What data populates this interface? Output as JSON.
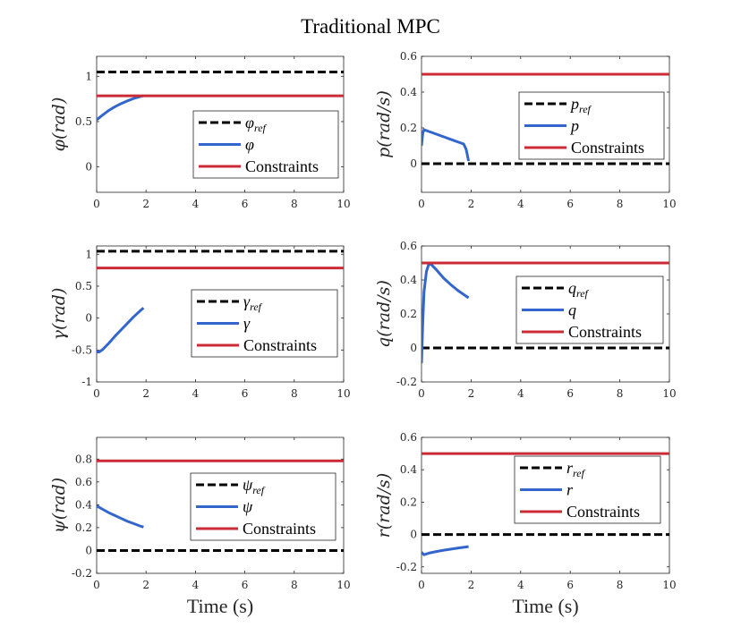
{
  "figure_title": "Traditional MPC",
  "chart_data": [
    {
      "id": "phi",
      "type": "line",
      "ylabel": "φ(rad)",
      "xlabel": "",
      "xlim": [
        0,
        10
      ],
      "ylim": [
        -0.28,
        1.22
      ],
      "xticks": [
        0,
        2,
        4,
        6,
        8,
        10
      ],
      "xtick_labels": [
        "0",
        "2",
        "4",
        "6",
        "8",
        "10"
      ],
      "yticks": [
        0,
        0.5,
        1
      ],
      "ytick_labels": [
        "0",
        "0.5",
        "1"
      ],
      "legend": {
        "position": "center-right",
        "entries": [
          {
            "sym": "φ",
            "sub": "ref",
            "text": ""
          },
          {
            "sym": "φ",
            "sub": "",
            "text": ""
          },
          {
            "sym": "",
            "sub": "",
            "text": "Constraints"
          }
        ]
      },
      "series": [
        {
          "name": "φ_ref",
          "style": "dash",
          "color": "#000000",
          "x": [
            0,
            10
          ],
          "y": [
            1.047,
            1.047
          ]
        },
        {
          "name": "φ",
          "style": "solid",
          "color": "#3366cc",
          "x": [
            0,
            0.25,
            0.5,
            0.75,
            1.0,
            1.25,
            1.5,
            1.75,
            1.9
          ],
          "y": [
            0.52,
            0.575,
            0.625,
            0.665,
            0.7,
            0.73,
            0.755,
            0.775,
            0.785
          ]
        },
        {
          "name": "Constraints",
          "style": "solid",
          "color": "#cc2b36",
          "x": [
            0,
            10
          ],
          "y": [
            0.785,
            0.785
          ]
        }
      ]
    },
    {
      "id": "p",
      "type": "line",
      "ylabel": "p(rad/s)",
      "xlabel": "",
      "xlim": [
        0,
        10
      ],
      "ylim": [
        -0.16,
        0.6
      ],
      "xticks": [
        0,
        2,
        4,
        6,
        8,
        10
      ],
      "xtick_labels": [
        "0",
        "2",
        "4",
        "6",
        "8",
        "10"
      ],
      "yticks": [
        0,
        0.2,
        0.4,
        0.6
      ],
      "ytick_labels": [
        "0",
        "0.2",
        "0.4",
        "0.6"
      ],
      "legend": {
        "position": "center-right",
        "entries": [
          {
            "sym": "p",
            "sub": "ref",
            "text": ""
          },
          {
            "sym": "p",
            "sub": "",
            "text": ""
          },
          {
            "sym": "",
            "sub": "",
            "text": "Constraints"
          }
        ]
      },
      "series": [
        {
          "name": "p_ref",
          "style": "dash",
          "color": "#000000",
          "x": [
            0,
            10
          ],
          "y": [
            0,
            0
          ]
        },
        {
          "name": "p",
          "style": "solid",
          "color": "#3366cc",
          "x": [
            0,
            0.05,
            0.1,
            0.2,
            0.5,
            1.0,
            1.5,
            1.7,
            1.8,
            1.9
          ],
          "y": [
            0.1,
            0.17,
            0.19,
            0.185,
            0.17,
            0.145,
            0.12,
            0.11,
            0.08,
            0.015
          ]
        },
        {
          "name": "Constraints",
          "style": "solid",
          "color": "#cc2b36",
          "x": [
            0,
            10
          ],
          "y": [
            0.5,
            0.5
          ]
        }
      ]
    },
    {
      "id": "gamma",
      "type": "line",
      "ylabel": "γ(rad)",
      "xlabel": "",
      "xlim": [
        0,
        10
      ],
      "ylim": [
        -1,
        1.13
      ],
      "xticks": [
        0,
        2,
        4,
        6,
        8,
        10
      ],
      "xtick_labels": [
        "0",
        "2",
        "4",
        "6",
        "8",
        "10"
      ],
      "yticks": [
        -1,
        -0.5,
        0,
        0.5,
        1
      ],
      "ytick_labels": [
        "-1",
        "-0.5",
        "0",
        "0.5",
        "1"
      ],
      "legend": {
        "position": "center-right",
        "entries": [
          {
            "sym": "γ",
            "sub": "ref",
            "text": ""
          },
          {
            "sym": "γ",
            "sub": "",
            "text": ""
          },
          {
            "sym": "",
            "sub": "",
            "text": "Constraints"
          }
        ]
      },
      "series": [
        {
          "name": "γ_ref",
          "style": "dash",
          "color": "#000000",
          "x": [
            0,
            10
          ],
          "y": [
            1.047,
            1.047
          ]
        },
        {
          "name": "γ",
          "style": "solid",
          "color": "#3366cc",
          "x": [
            0,
            0.1,
            0.25,
            0.5,
            0.75,
            1.0,
            1.25,
            1.5,
            1.75,
            1.9
          ],
          "y": [
            -0.53,
            -0.53,
            -0.49,
            -0.39,
            -0.28,
            -0.18,
            -0.08,
            0.02,
            0.11,
            0.16
          ]
        },
        {
          "name": "Constraints",
          "style": "solid",
          "color": "#cc2b36",
          "x": [
            0,
            10
          ],
          "y": [
            0.785,
            0.785
          ]
        }
      ]
    },
    {
      "id": "q",
      "type": "line",
      "ylabel": "q(rad/s)",
      "xlabel": "",
      "xlim": [
        0,
        10
      ],
      "ylim": [
        -0.2,
        0.6
      ],
      "xticks": [
        0,
        2,
        4,
        6,
        8,
        10
      ],
      "xtick_labels": [
        "0",
        "2",
        "4",
        "6",
        "8",
        "10"
      ],
      "yticks": [
        -0.2,
        0,
        0.2,
        0.4,
        0.6
      ],
      "ytick_labels": [
        "-0.2",
        "0",
        "0.2",
        "0.4",
        "0.6"
      ],
      "legend": {
        "position": "center-right",
        "entries": [
          {
            "sym": "q",
            "sub": "ref",
            "text": ""
          },
          {
            "sym": "q",
            "sub": "",
            "text": ""
          },
          {
            "sym": "",
            "sub": "",
            "text": "Constraints"
          }
        ]
      },
      "series": [
        {
          "name": "q_ref",
          "style": "dash",
          "color": "#000000",
          "x": [
            0,
            10
          ],
          "y": [
            0,
            0
          ]
        },
        {
          "name": "q",
          "style": "solid",
          "color": "#3366cc",
          "x": [
            0,
            0.05,
            0.1,
            0.2,
            0.3,
            0.4,
            0.6,
            0.9,
            1.2,
            1.5,
            1.9
          ],
          "y": [
            -0.09,
            0.15,
            0.33,
            0.45,
            0.495,
            0.49,
            0.46,
            0.41,
            0.37,
            0.335,
            0.295
          ]
        },
        {
          "name": "Constraints",
          "style": "solid",
          "color": "#cc2b36",
          "x": [
            0,
            10
          ],
          "y": [
            0.5,
            0.5
          ]
        }
      ]
    },
    {
      "id": "psi",
      "type": "line",
      "ylabel": "ψ(rad)",
      "xlabel": "Time (s)",
      "xlim": [
        0,
        10
      ],
      "ylim": [
        -0.2,
        0.99
      ],
      "xticks": [
        0,
        2,
        4,
        6,
        8,
        10
      ],
      "xtick_labels": [
        "0",
        "2",
        "4",
        "6",
        "8",
        "10"
      ],
      "yticks": [
        -0.2,
        0,
        0.2,
        0.4,
        0.6,
        0.8
      ],
      "ytick_labels": [
        "-0.2",
        "0",
        "0.2",
        "0.4",
        "0.6",
        "0.8"
      ],
      "legend": {
        "position": "center-right",
        "entries": [
          {
            "sym": "ψ",
            "sub": "ref",
            "text": ""
          },
          {
            "sym": "ψ",
            "sub": "",
            "text": ""
          },
          {
            "sym": "",
            "sub": "",
            "text": "Constraints"
          }
        ]
      },
      "series": [
        {
          "name": "ψ_ref",
          "style": "dash",
          "color": "#000000",
          "x": [
            0,
            10
          ],
          "y": [
            0,
            0
          ]
        },
        {
          "name": "ψ",
          "style": "solid",
          "color": "#3366cc",
          "x": [
            0,
            0.25,
            0.5,
            0.75,
            1.0,
            1.25,
            1.5,
            1.75,
            1.9
          ],
          "y": [
            0.39,
            0.36,
            0.33,
            0.305,
            0.28,
            0.255,
            0.235,
            0.215,
            0.205
          ]
        },
        {
          "name": "Constraints",
          "style": "solid",
          "color": "#cc2b36",
          "x": [
            0,
            10
          ],
          "y": [
            0.785,
            0.785
          ]
        }
      ]
    },
    {
      "id": "r",
      "type": "line",
      "ylabel": "r(rad/s)",
      "xlabel": "Time (s)",
      "xlim": [
        0,
        10
      ],
      "ylim": [
        -0.24,
        0.6
      ],
      "xticks": [
        0,
        2,
        4,
        6,
        8,
        10
      ],
      "xtick_labels": [
        "0",
        "2",
        "4",
        "6",
        "8",
        "10"
      ],
      "yticks": [
        -0.2,
        0,
        0.2,
        0.4,
        0.6
      ],
      "ytick_labels": [
        "-0.2",
        "0",
        "0.2",
        "0.4",
        "0.6"
      ],
      "legend": {
        "position": "center-right",
        "entries": [
          {
            "sym": "r",
            "sub": "ref",
            "text": ""
          },
          {
            "sym": "r",
            "sub": "",
            "text": ""
          },
          {
            "sym": "",
            "sub": "",
            "text": "Constraints"
          }
        ]
      },
      "series": [
        {
          "name": "r_ref",
          "style": "dash",
          "color": "#000000",
          "x": [
            0,
            10
          ],
          "y": [
            0,
            0
          ]
        },
        {
          "name": "r",
          "style": "solid",
          "color": "#3366cc",
          "x": [
            0,
            0.1,
            0.3,
            0.6,
            0.9,
            1.2,
            1.5,
            1.9
          ],
          "y": [
            -0.11,
            -0.125,
            -0.115,
            -0.105,
            -0.097,
            -0.09,
            -0.083,
            -0.075
          ]
        },
        {
          "name": "Constraints",
          "style": "solid",
          "color": "#cc2b36",
          "x": [
            0,
            10
          ],
          "y": [
            0.5,
            0.5
          ]
        }
      ]
    }
  ]
}
